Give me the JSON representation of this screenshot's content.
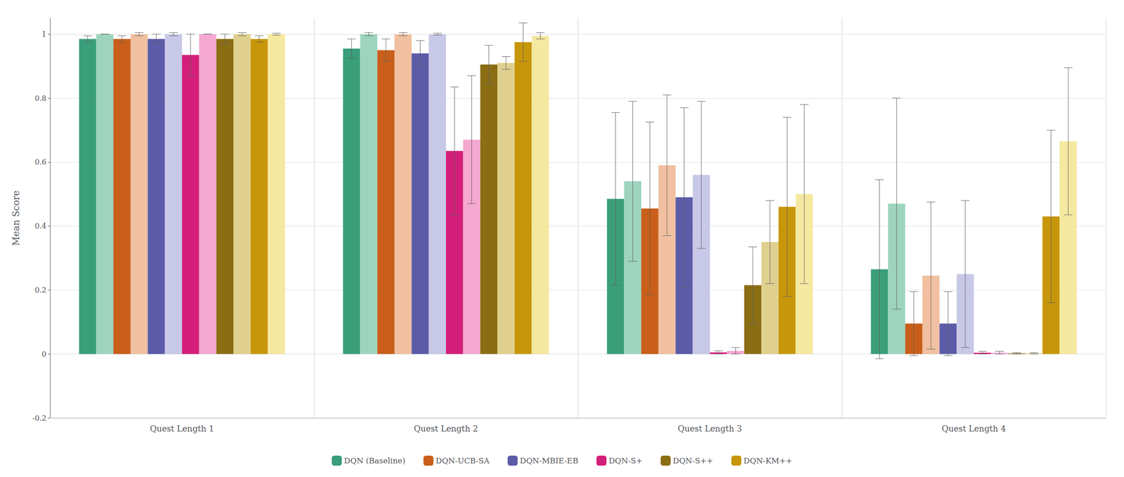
{
  "chart_data": {
    "type": "bar",
    "categories": [
      "Quest Length 1",
      "Quest Length 2",
      "Quest Length 3",
      "Quest Length 4"
    ],
    "ylabel": "Mean Score",
    "ylim": [
      -0.2,
      1.05
    ],
    "yticks": [
      -0.2,
      0,
      0.2,
      0.4,
      0.6,
      0.8,
      1
    ],
    "grid": true,
    "legend": "bottom",
    "series": [
      {
        "name": "DQN (Baseline)",
        "color": "#3a9e7a",
        "values": [
          0.985,
          0.955,
          0.485,
          0.265
        ],
        "errors": [
          0.01,
          0.03,
          0.27,
          0.28
        ]
      },
      {
        "color": "#9ed4be",
        "values": [
          1.0,
          1.0,
          0.54,
          0.47
        ],
        "errors": [
          0.0,
          0.005,
          0.25,
          0.33
        ]
      },
      {
        "name": "DQN-UCB-SA",
        "color": "#c95f1a",
        "values": [
          0.985,
          0.95,
          0.455,
          0.095
        ],
        "errors": [
          0.01,
          0.035,
          0.27,
          0.1
        ]
      },
      {
        "color": "#f0c0a0",
        "values": [
          1.0,
          1.0,
          0.59,
          0.245
        ],
        "errors": [
          0.005,
          0.005,
          0.22,
          0.23
        ]
      },
      {
        "name": "DQN-MBIE-EB",
        "color": "#5b5ba8",
        "values": [
          0.985,
          0.94,
          0.49,
          0.095
        ],
        "errors": [
          0.015,
          0.04,
          0.28,
          0.1
        ]
      },
      {
        "color": "#c8c8e8",
        "values": [
          1.0,
          1.0,
          0.56,
          0.25
        ],
        "errors": [
          0.005,
          0.003,
          0.23,
          0.23
        ]
      },
      {
        "name": "DQN-S+",
        "color": "#d41f7a",
        "values": [
          0.935,
          0.635,
          0.005,
          0.004
        ],
        "errors": [
          0.065,
          0.2,
          0.005,
          0.004
        ]
      },
      {
        "color": "#f5a8d0",
        "values": [
          1.0,
          0.67,
          0.01,
          0.004
        ],
        "errors": [
          0.0,
          0.2,
          0.01,
          0.004
        ]
      },
      {
        "name": "DQN-S++",
        "color": "#8b6e14",
        "values": [
          0.985,
          0.905,
          0.215,
          0.002
        ],
        "errors": [
          0.015,
          0.06,
          0.12,
          0.002
        ]
      },
      {
        "color": "#e0d090",
        "values": [
          1.0,
          0.91,
          0.35,
          0.002
        ],
        "errors": [
          0.005,
          0.02,
          0.13,
          0.002
        ]
      },
      {
        "name": "DQN-KM++",
        "color": "#c8960a",
        "values": [
          0.985,
          0.975,
          0.46,
          0.43
        ],
        "errors": [
          0.01,
          0.06,
          0.28,
          0.27
        ]
      },
      {
        "color": "#f5e8a0",
        "values": [
          1.0,
          0.995,
          0.5,
          0.665
        ],
        "errors": [
          0.003,
          0.01,
          0.28,
          0.23
        ]
      }
    ]
  }
}
